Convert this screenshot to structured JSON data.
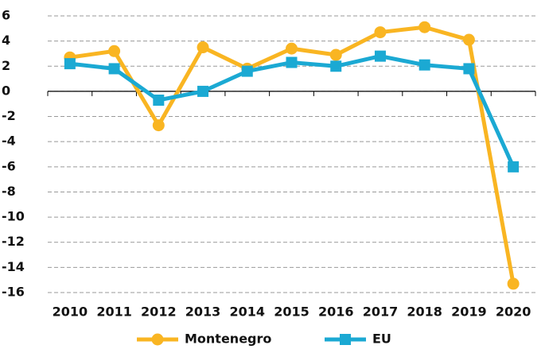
{
  "chart_data": {
    "type": "line",
    "categories": [
      "2010",
      "2011",
      "2012",
      "2013",
      "2014",
      "2015",
      "2016",
      "2017",
      "2018",
      "2019",
      "2020"
    ],
    "series": [
      {
        "name": "Montenegro",
        "color": "#f9b522",
        "marker": "circle",
        "values": [
          2.7,
          3.2,
          -2.7,
          3.5,
          1.8,
          3.4,
          2.9,
          4.7,
          5.1,
          4.1,
          -15.3
        ]
      },
      {
        "name": "EU",
        "color": "#1ba9d3",
        "marker": "square",
        "values": [
          2.2,
          1.8,
          -0.7,
          0.0,
          1.6,
          2.3,
          2.0,
          2.8,
          2.1,
          1.8,
          -6.0
        ]
      }
    ],
    "ylim": [
      -16,
      6
    ],
    "yticks": [
      -16,
      -14,
      -12,
      -10,
      -8,
      -6,
      -4,
      -2,
      0,
      2,
      4,
      6
    ],
    "grid": true,
    "legend": "bottom"
  }
}
